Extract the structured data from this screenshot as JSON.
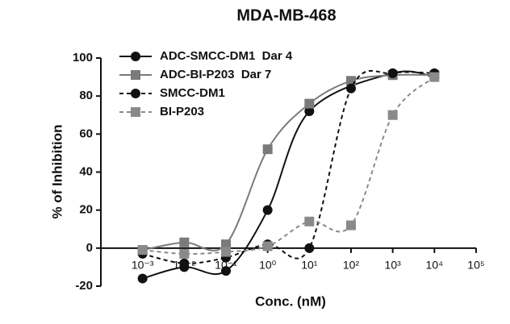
{
  "chart_data": {
    "type": "line",
    "title": "MDA-MB-468",
    "x_label": "Conc. (nM)",
    "y_label": "% of Inhibition",
    "log_x": true,
    "xlim": [
      0.0001,
      100000
    ],
    "xticks": [
      {
        "value": 0.001,
        "label": "10⁻³"
      },
      {
        "value": 0.01,
        "label": "10⁻²"
      },
      {
        "value": 0.1,
        "label": "10⁻¹"
      },
      {
        "value": 1,
        "label": "10⁰"
      },
      {
        "value": 10,
        "label": "10¹"
      },
      {
        "value": 100,
        "label": "10²"
      },
      {
        "value": 1000,
        "label": "10³"
      },
      {
        "value": 10000,
        "label": "10⁴"
      },
      {
        "value": 100000,
        "label": "10⁵"
      }
    ],
    "ylim": [
      -20,
      100
    ],
    "yticks": [
      -20,
      0,
      20,
      40,
      60,
      80,
      100
    ],
    "legend": "top-left",
    "series": [
      {
        "name": "ADC-SMCC-DM1  Dar 4",
        "color": "#111111",
        "marker": "circle",
        "dashed": false,
        "x": [
          0.001,
          0.01,
          0.1,
          1,
          10,
          1000,
          10000
        ],
        "values": [
          -16,
          -10,
          -12,
          20,
          72,
          92,
          90
        ]
      },
      {
        "name": "ADC-BI-P203  Dar 7",
        "color": "#7a7a7a",
        "marker": "square",
        "dashed": false,
        "x": [
          0.001,
          0.01,
          0.1,
          1,
          10,
          100,
          1000,
          10000
        ],
        "values": [
          -1,
          3,
          2,
          52,
          76,
          88,
          91,
          91
        ]
      },
      {
        "name": "SMCC-DM1",
        "color": "#111111",
        "marker": "circle",
        "dashed": true,
        "x": [
          0.001,
          0.01,
          0.1,
          1,
          10,
          100,
          1000,
          10000
        ],
        "values": [
          -3,
          -8,
          -5,
          2,
          0,
          84,
          92,
          92
        ]
      },
      {
        "name": "BI-P203",
        "color": "#8a8a8a",
        "marker": "square",
        "dashed": true,
        "x": [
          0.001,
          0.01,
          0.1,
          1,
          10,
          100,
          1000,
          10000
        ],
        "values": [
          -1,
          -3,
          -2,
          1,
          14,
          12,
          70,
          90
        ]
      }
    ]
  }
}
